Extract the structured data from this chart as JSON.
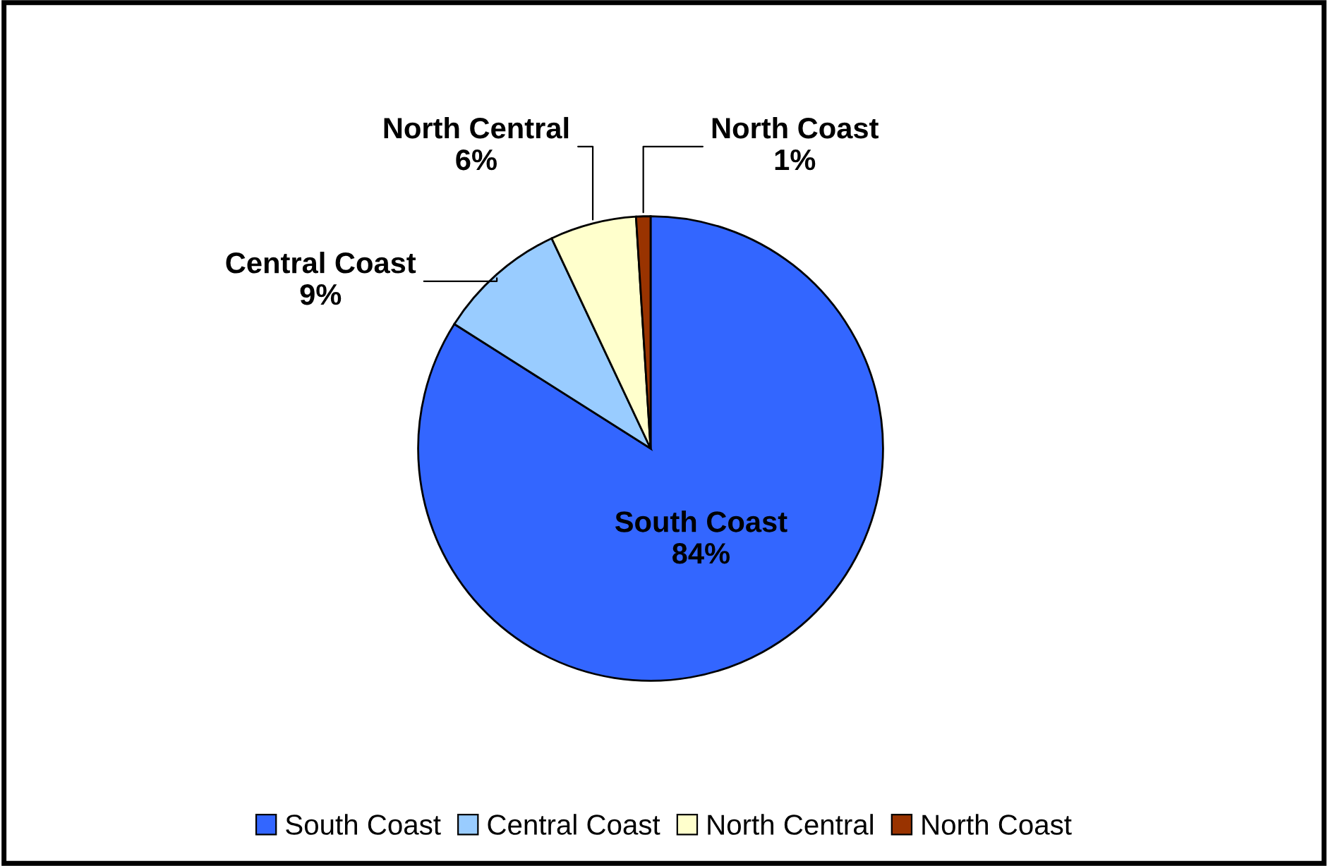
{
  "chart_data": {
    "type": "pie",
    "categories": [
      "South Coast",
      "Central Coast",
      "North Central",
      "North Coast"
    ],
    "values": [
      84,
      9,
      6,
      1
    ],
    "value_labels": [
      "84%",
      "9%",
      "6%",
      "1%"
    ],
    "colors": [
      "#3366ff",
      "#99ccff",
      "#ffffcc",
      "#993300"
    ],
    "legend": "bottom"
  }
}
